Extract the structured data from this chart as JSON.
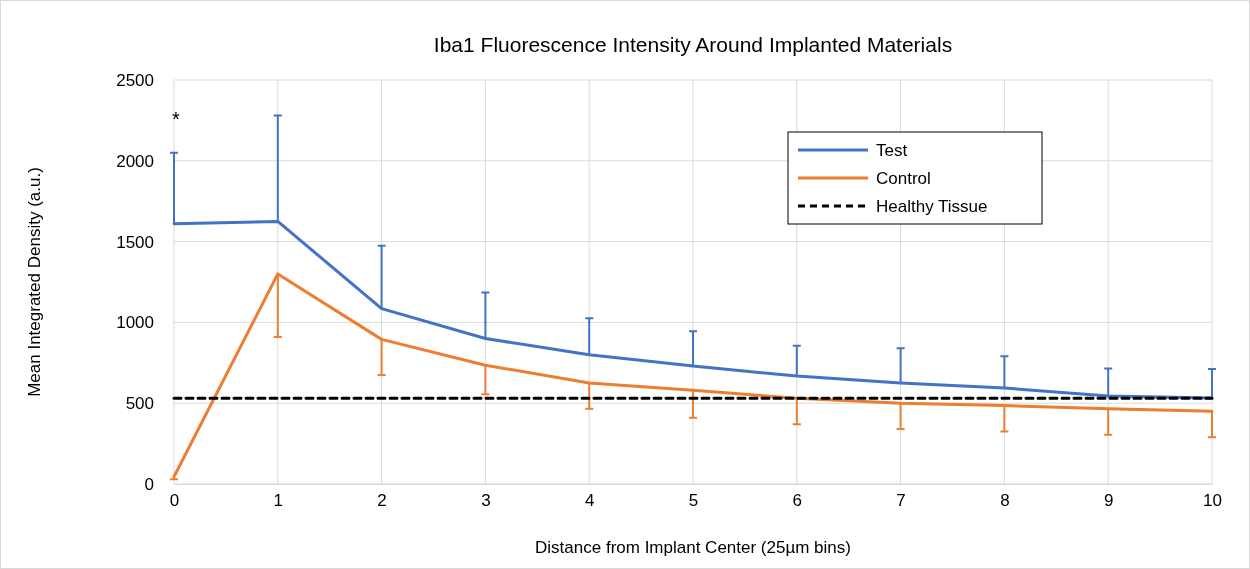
{
  "chart_data": {
    "type": "line",
    "title": "Iba1  Fluorescence Intensity Around Implanted Materials",
    "xlabel": "Distance from Implant Center (25µm bins)",
    "ylabel": "Mean Integrated Density (a.u.)",
    "x": [
      0,
      1,
      2,
      3,
      4,
      5,
      6,
      7,
      8,
      9,
      10
    ],
    "xlim": [
      0,
      10
    ],
    "xticks": [
      0,
      1,
      2,
      3,
      4,
      5,
      6,
      7,
      8,
      9,
      10
    ],
    "ylim": [
      0,
      2500
    ],
    "yticks": [
      0,
      500,
      1000,
      1500,
      2000,
      2500
    ],
    "grid": true,
    "legend": "top right",
    "marker": "none",
    "series": [
      {
        "name": "Test",
        "color": "#4472c4",
        "values": [
          1610,
          1625,
          1085,
          900,
          800,
          730,
          668,
          625,
          594,
          545,
          532
        ],
        "errors": [
          [
            1610,
            2050
          ],
          [
            1625,
            2280
          ],
          [
            1085,
            1475
          ],
          [
            900,
            1185
          ],
          [
            800,
            1025
          ],
          [
            730,
            945
          ],
          [
            668,
            855
          ],
          [
            625,
            840
          ],
          [
            594,
            790
          ],
          [
            545,
            715
          ],
          [
            532,
            712
          ]
        ]
      },
      {
        "name": "Control",
        "color": "#ed7d31",
        "values": [
          45,
          1300,
          895,
          735,
          625,
          580,
          530,
          500,
          485,
          465,
          450
        ],
        "errors": [
          [
            30,
            45
          ],
          [
            910,
            1300
          ],
          [
            675,
            895
          ],
          [
            555,
            735
          ],
          [
            465,
            625
          ],
          [
            410,
            580
          ],
          [
            370,
            530
          ],
          [
            340,
            500
          ],
          [
            325,
            485
          ],
          [
            305,
            465
          ],
          [
            290,
            450
          ]
        ]
      },
      {
        "name": "Healthy Tissue",
        "color": "#000000",
        "line_style": "dashed",
        "values": [
          530,
          530,
          530,
          530,
          530,
          530,
          530,
          530,
          530,
          530,
          530
        ]
      }
    ],
    "annotations": [
      "*"
    ]
  }
}
